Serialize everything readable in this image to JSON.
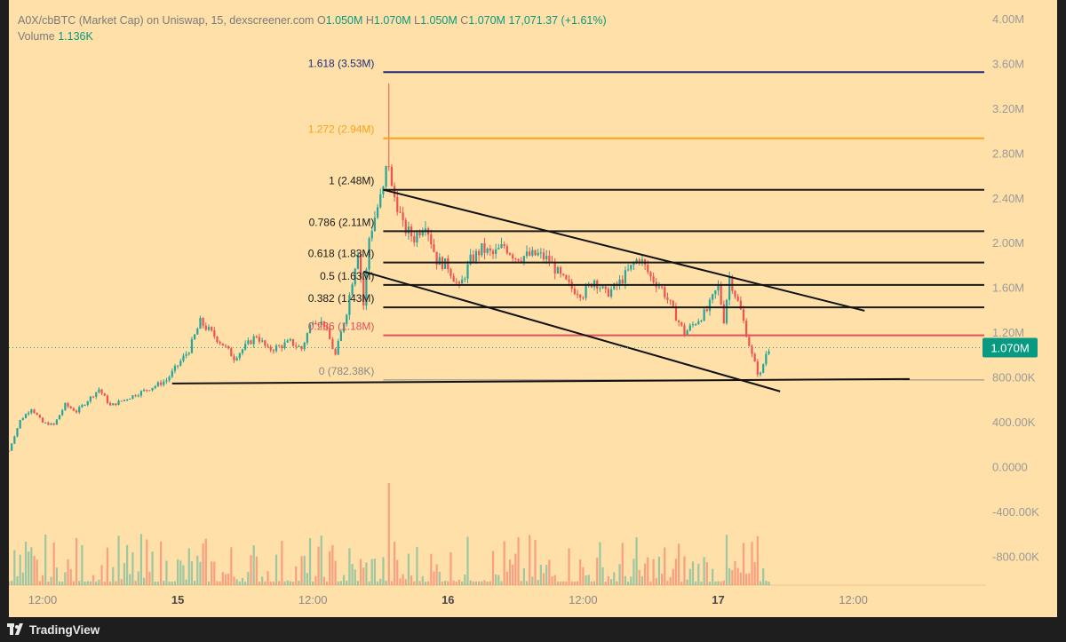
{
  "header": {
    "symbol": "A0X/cbBTC (Market Cap) on Uniswap, 15, dexscreener.com",
    "open_label": "O",
    "open": "1.050M",
    "high_label": "H",
    "high": "1.070M",
    "low_label": "L",
    "low": "1.050M",
    "close_label": "C",
    "close": "1.070M",
    "change": "17,071.37 (+1.61%)",
    "volume_label": "Volume",
    "volume": "1.136K"
  },
  "footer": {
    "brand": "TradingView"
  },
  "colors": {
    "background": "#ffe0a9",
    "up": "#26a69a",
    "down": "#ef5350",
    "price_badge": "#089981",
    "fib_high": "#1f2a7a",
    "fib_1272": "#f7a21b",
    "fib_0236": "#e0505a",
    "fib_zero": "#888888",
    "fib_default": "#1a1a1a"
  },
  "chart_data": {
    "type": "candlestick",
    "interval_minutes": 15,
    "y_axis": {
      "unit": "market cap (USD)",
      "range": [
        -900000,
        4000000
      ],
      "ticks": [
        "4.00M",
        "3.60M",
        "3.20M",
        "2.80M",
        "2.40M",
        "2.00M",
        "1.60M",
        "1.20M",
        "800.00K",
        "400.00K",
        "0.0000",
        "-400.00K",
        "-800.00K"
      ],
      "tick_values": [
        4000000,
        3600000,
        3200000,
        2800000,
        2400000,
        2000000,
        1600000,
        1200000,
        800000,
        400000,
        0,
        -400000,
        -800000
      ]
    },
    "x_axis": {
      "range": [
        "2025-01-14 09:00",
        "2025-01-17 23:00"
      ],
      "tick_labels": [
        "12:00",
        "15",
        "12:00",
        "16",
        "12:00",
        "17",
        "12:00"
      ],
      "tick_times": [
        "2025-01-14 12:00",
        "2025-01-15 00:00",
        "2025-01-15 12:00",
        "2025-01-16 00:00",
        "2025-01-16 12:00",
        "2025-01-17 00:00",
        "2025-01-17 12:00"
      ],
      "bold_labels": [
        "15",
        "16",
        "17"
      ]
    },
    "last_price": {
      "value": 1070000,
      "label": "1.070M"
    },
    "price_path": [
      [
        "2025-01-14 09:00",
        150000
      ],
      [
        "2025-01-14 10:00",
        420000
      ],
      [
        "2025-01-14 11:00",
        530000
      ],
      [
        "2025-01-14 12:00",
        400000
      ],
      [
        "2025-01-14 13:00",
        380000
      ],
      [
        "2025-01-14 14:00",
        560000
      ],
      [
        "2025-01-14 15:00",
        500000
      ],
      [
        "2025-01-14 17:00",
        700000
      ],
      [
        "2025-01-14 18:00",
        550000
      ],
      [
        "2025-01-14 20:00",
        640000
      ],
      [
        "2025-01-14 22:00",
        730000
      ],
      [
        "2025-01-14 23:00",
        780000
      ],
      [
        "2025-01-15 01:00",
        1050000
      ],
      [
        "2025-01-15 02:00",
        1300000
      ],
      [
        "2025-01-15 04:00",
        1100000
      ],
      [
        "2025-01-15 05:00",
        980000
      ],
      [
        "2025-01-15 07:00",
        1180000
      ],
      [
        "2025-01-15 08:00",
        1050000
      ],
      [
        "2025-01-15 09:00",
        1080000
      ],
      [
        "2025-01-15 10:00",
        1120000
      ],
      [
        "2025-01-15 11:00",
        1060000
      ],
      [
        "2025-01-15 12:00",
        1330000
      ],
      [
        "2025-01-15 13:00",
        1280000
      ],
      [
        "2025-01-15 14:00",
        1000000
      ],
      [
        "2025-01-15 15:00",
        1400000
      ],
      [
        "2025-01-15 16:00",
        1950000
      ],
      [
        "2025-01-15 16:30",
        1450000
      ],
      [
        "2025-01-15 17:00",
        2050000
      ],
      [
        "2025-01-15 17:40",
        2300000
      ],
      [
        "2025-01-15 18:20",
        2500000
      ],
      [
        "2025-01-15 18:40",
        2800000
      ],
      [
        "2025-01-15 19:00",
        2480000
      ],
      [
        "2025-01-15 19:30",
        2350000
      ],
      [
        "2025-01-15 20:00",
        2150000
      ],
      [
        "2025-01-15 21:00",
        2050000
      ],
      [
        "2025-01-15 22:00",
        2200000
      ],
      [
        "2025-01-15 23:00",
        1850000
      ],
      [
        "2025-01-16 00:00",
        1800000
      ],
      [
        "2025-01-16 01:00",
        1600000
      ],
      [
        "2025-01-16 02:00",
        1850000
      ],
      [
        "2025-01-16 03:00",
        1950000
      ],
      [
        "2025-01-16 04:00",
        1900000
      ],
      [
        "2025-01-16 05:00",
        1980000
      ],
      [
        "2025-01-16 06:00",
        1880000
      ],
      [
        "2025-01-16 08:00",
        1900000
      ],
      [
        "2025-01-16 09:00",
        1850000
      ],
      [
        "2025-01-16 10:00",
        1700000
      ],
      [
        "2025-01-16 11:00",
        1600000
      ],
      [
        "2025-01-16 12:00",
        1550000
      ],
      [
        "2025-01-16 13:00",
        1680000
      ],
      [
        "2025-01-16 14:00",
        1550000
      ],
      [
        "2025-01-16 15:00",
        1620000
      ],
      [
        "2025-01-16 17:00",
        1880000
      ],
      [
        "2025-01-16 18:00",
        1700000
      ],
      [
        "2025-01-16 19:00",
        1600000
      ],
      [
        "2025-01-16 20:00",
        1400000
      ],
      [
        "2025-01-16 21:00",
        1200000
      ],
      [
        "2025-01-16 22:00",
        1300000
      ],
      [
        "2025-01-16 23:00",
        1400000
      ],
      [
        "2025-01-17 00:00",
        1620000
      ],
      [
        "2025-01-17 00:30",
        1320000
      ],
      [
        "2025-01-17 01:00",
        1700000
      ],
      [
        "2025-01-17 02:00",
        1400000
      ],
      [
        "2025-01-17 03:00",
        1000000
      ],
      [
        "2025-01-17 03:40",
        800000
      ],
      [
        "2025-01-17 04:20",
        1050000
      ],
      [
        "2025-01-17 04:40",
        1070000
      ]
    ],
    "volume_panel": {
      "range": [
        0,
        10000
      ],
      "note": "volume bars per candle, colour matches candle direction"
    },
    "fibonacci_retracement": {
      "start_time": "2025-01-15 18:15",
      "end_time": "2025-01-17 23:00",
      "levels": [
        {
          "ratio": "1.618",
          "value": 3530000,
          "label": "1.618 (3.53M)",
          "color_key": "fib_high"
        },
        {
          "ratio": "1.272",
          "value": 2940000,
          "label": "1.272 (2.94M)",
          "color_key": "fib_1272"
        },
        {
          "ratio": "1",
          "value": 2480000,
          "label": "1 (2.48M)",
          "color_key": "fib_default"
        },
        {
          "ratio": "0.786",
          "value": 2110000,
          "label": "0.786 (2.11M)",
          "color_key": "fib_default"
        },
        {
          "ratio": "0.618",
          "value": 1830000,
          "label": "0.618 (1.83M)",
          "color_key": "fib_default"
        },
        {
          "ratio": "0.5",
          "value": 1630000,
          "label": "0.5 (1.63M)",
          "color_key": "fib_default"
        },
        {
          "ratio": "0.382",
          "value": 1430000,
          "label": "0.382 (1.43M)",
          "color_key": "fib_default"
        },
        {
          "ratio": "0.236",
          "value": 1180000,
          "label": "0.236 (1.18M)",
          "color_key": "fib_0236"
        },
        {
          "ratio": "0",
          "value": 782380,
          "label": "0 (782.38K)",
          "color_key": "fib_zero"
        }
      ]
    },
    "trendlines": [
      {
        "name": "channel-upper",
        "from": [
          "2025-01-15 18:15",
          2480000
        ],
        "to": [
          "2025-01-17 13:00",
          1400000
        ]
      },
      {
        "name": "channel-lower",
        "from": [
          "2025-01-15 16:30",
          1750000
        ],
        "to": [
          "2025-01-17 05:30",
          680000
        ]
      },
      {
        "name": "support-line",
        "from": [
          "2025-01-14 23:30",
          750000
        ],
        "to": [
          "2025-01-17 17:00",
          790000
        ]
      }
    ]
  }
}
